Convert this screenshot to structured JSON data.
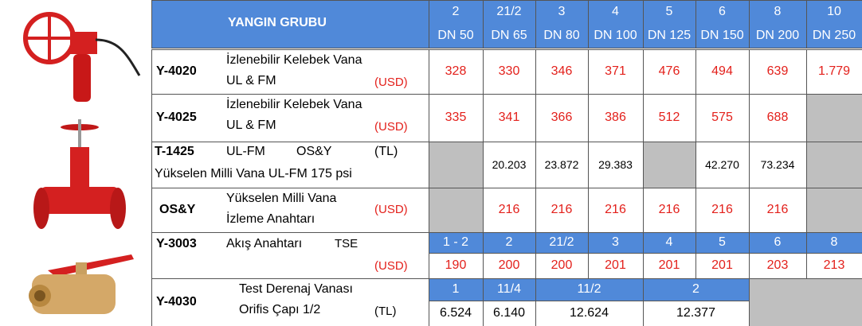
{
  "header": {
    "title": "YANGIN GRUBU",
    "sizes": [
      {
        "inch": "2",
        "dn": "DN 50"
      },
      {
        "inch": "21/2",
        "dn": "DN 65"
      },
      {
        "inch": "3",
        "dn": "DN 80"
      },
      {
        "inch": "4",
        "dn": "DN 100"
      },
      {
        "inch": "5",
        "dn": "DN 125"
      },
      {
        "inch": "6",
        "dn": "DN 150"
      },
      {
        "inch": "8",
        "dn": "DN 200"
      },
      {
        "inch": "10",
        "dn": "DN 250"
      }
    ]
  },
  "rows": [
    {
      "code": "Y-4020",
      "desc": [
        "İzlenebilir Kelebek Vana",
        "UL & FM"
      ],
      "currency": "(USD)",
      "prices": [
        "328",
        "330",
        "346",
        "371",
        "476",
        "494",
        "639",
        "1.779"
      ]
    },
    {
      "code": "Y-4025",
      "desc": [
        "İzlenebilir Kelebek Vana",
        "UL & FM"
      ],
      "currency": "(USD)",
      "prices": [
        "335",
        "341",
        "366",
        "386",
        "512",
        "575",
        "688",
        null
      ]
    },
    {
      "code": "T-1425",
      "desc": [
        "UL-FM",
        "OS&Y",
        "Yükselen Milli Vana UL-FM 175 psi"
      ],
      "currency": "(TL)",
      "prices": [
        null,
        "20.203",
        "23.872",
        "29.383",
        null,
        "42.270",
        "73.234",
        null
      ]
    },
    {
      "code": "OS&Y",
      "desc": [
        "Yükselen Milli Vana",
        "İzleme Anahtarı"
      ],
      "currency": "(USD)",
      "prices": [
        null,
        "216",
        "216",
        "216",
        "216",
        "216",
        "216",
        null
      ]
    },
    {
      "code": "Y-3003",
      "desc": [
        "Akış Anahtarı",
        "TSE"
      ],
      "currency": "(USD)",
      "sizes": [
        "1 - 2",
        "2",
        "21/2",
        "3",
        "4",
        "5",
        "6",
        "8"
      ],
      "prices": [
        "190",
        "200",
        "200",
        "201",
        "201",
        "201",
        "203",
        "213"
      ]
    },
    {
      "code": "Y-4030",
      "desc": [
        "Test Derenaj Vanası",
        "Orifis Çapı 1/2"
      ],
      "currency": "(TL)",
      "sizes": [
        "1",
        "11/4",
        "11/2",
        "2"
      ],
      "prices": [
        "6.524",
        "6.140",
        "12.624",
        "12.377"
      ]
    }
  ]
}
